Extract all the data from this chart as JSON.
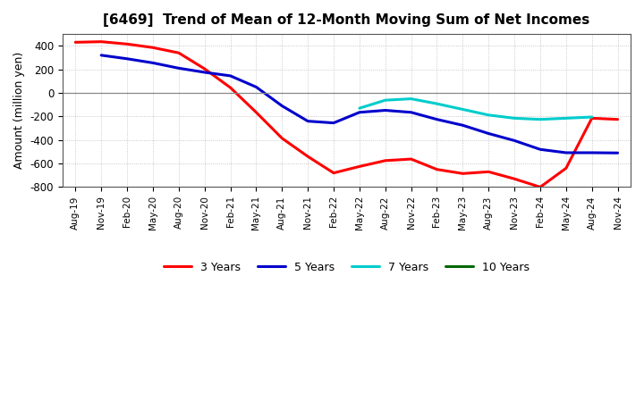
{
  "title": "[6469]  Trend of Mean of 12-Month Moving Sum of Net Incomes",
  "ylabel": "Amount (million yen)",
  "ylim": [
    -800,
    500
  ],
  "yticks": [
    -800,
    -600,
    -400,
    -200,
    0,
    200,
    400
  ],
  "background_color": "#ffffff",
  "plot_bg_color": "#ffffff",
  "x_labels": [
    "Aug-19",
    "Nov-19",
    "Feb-20",
    "May-20",
    "Aug-20",
    "Nov-20",
    "Feb-21",
    "May-21",
    "Aug-21",
    "Nov-21",
    "Feb-22",
    "May-22",
    "Aug-22",
    "Nov-22",
    "Feb-23",
    "May-23",
    "Aug-23",
    "Nov-23",
    "Feb-24",
    "May-24",
    "Aug-24",
    "Nov-24"
  ],
  "series": {
    "3 Years": {
      "color": "#ff0000",
      "data": [
        430,
        435,
        415,
        385,
        340,
        205,
        45,
        -165,
        -385,
        -540,
        -680,
        -625,
        -575,
        -562,
        -650,
        -685,
        -670,
        -730,
        -800,
        -640,
        -215,
        -225
      ]
    },
    "5 Years": {
      "color": "#0000cc",
      "data": [
        null,
        320,
        290,
        255,
        210,
        175,
        145,
        50,
        -110,
        -240,
        -255,
        -165,
        -148,
        -165,
        -225,
        -275,
        -345,
        -405,
        -480,
        -508,
        -508,
        -510
      ]
    },
    "7 Years": {
      "color": "#00cccc",
      "data": [
        null,
        null,
        null,
        null,
        null,
        null,
        null,
        null,
        null,
        null,
        null,
        -130,
        -62,
        -50,
        -92,
        -140,
        -188,
        -215,
        -225,
        -215,
        -205,
        null
      ]
    },
    "10 Years": {
      "color": "#006600",
      "data": [
        null,
        null,
        null,
        null,
        null,
        null,
        null,
        null,
        null,
        null,
        null,
        null,
        null,
        null,
        null,
        null,
        null,
        null,
        null,
        null,
        null,
        null
      ]
    }
  },
  "legend_order": [
    "3 Years",
    "5 Years",
    "7 Years",
    "10 Years"
  ]
}
